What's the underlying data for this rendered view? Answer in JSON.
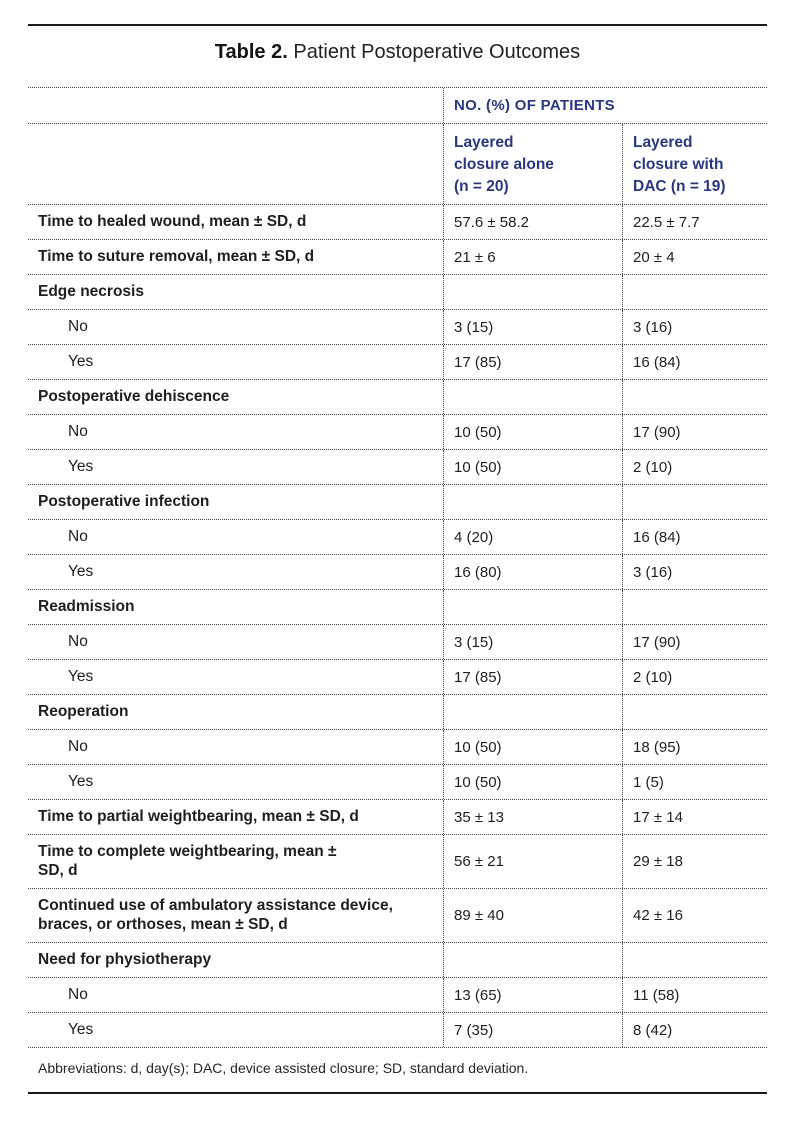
{
  "title": {
    "bold": "Table 2.",
    "rest": "Patient Postoperative Outcomes"
  },
  "table": {
    "group_header": "NO. (%) OF PATIENTS",
    "col_headers": [
      "Layered\ncclosure alone\n(n = 20)",
      "Layered\ncclosure with\nDAC (n = 19)"
    ],
    "rows": [
      {
        "label": "Time to healed wound, mean ± SD, d",
        "bold": true,
        "indent": false,
        "values": [
          "57.6 ± 58.2",
          "22.5 ± 7.7"
        ]
      },
      {
        "label": "Time to suture removal, mean ± SD, d",
        "bold": true,
        "indent": false,
        "values": [
          "21 ± 6",
          "20 ± 4"
        ]
      },
      {
        "label": "Edge necrosis",
        "bold": true,
        "indent": false,
        "values": [
          "",
          ""
        ]
      },
      {
        "label": "No",
        "bold": false,
        "indent": true,
        "values": [
          "3 (15)",
          "3 (16)"
        ]
      },
      {
        "label": "Yes",
        "bold": false,
        "indent": true,
        "values": [
          "17 (85)",
          "16 (84)"
        ]
      },
      {
        "label": "Postoperative dehiscence",
        "bold": true,
        "indent": false,
        "values": [
          "",
          ""
        ]
      },
      {
        "label": "No",
        "bold": false,
        "indent": true,
        "values": [
          "10 (50)",
          "17 (90)"
        ]
      },
      {
        "label": "Yes",
        "bold": false,
        "indent": true,
        "values": [
          "10 (50)",
          "2 (10)"
        ]
      },
      {
        "label": "Postoperative infection",
        "bold": true,
        "indent": false,
        "values": [
          "",
          ""
        ]
      },
      {
        "label": "No",
        "bold": false,
        "indent": true,
        "values": [
          "4 (20)",
          "16 (84)"
        ]
      },
      {
        "label": "Yes",
        "bold": false,
        "indent": true,
        "values": [
          "16 (80)",
          "3 (16)"
        ]
      },
      {
        "label": "Readmission",
        "bold": true,
        "indent": false,
        "values": [
          "",
          ""
        ]
      },
      {
        "label": "No",
        "bold": false,
        "indent": true,
        "values": [
          "3 (15)",
          "17 (90)"
        ]
      },
      {
        "label": "Yes",
        "bold": false,
        "indent": true,
        "values": [
          "17 (85)",
          "2 (10)"
        ]
      },
      {
        "label": "Reoperation",
        "bold": true,
        "indent": false,
        "values": [
          "",
          ""
        ]
      },
      {
        "label": "No",
        "bold": false,
        "indent": true,
        "values": [
          "10 (50)",
          "18 (95)"
        ]
      },
      {
        "label": "Yes",
        "bold": false,
        "indent": true,
        "values": [
          "10 (50)",
          "1 (5)"
        ]
      },
      {
        "label": "Time to partial weightbearing, mean ± SD, d",
        "bold": true,
        "indent": false,
        "values": [
          "35 ± 13",
          "17 ± 14"
        ]
      },
      {
        "label": "Time to complete weightbearing, mean ±\nSD, d",
        "bold": true,
        "indent": false,
        "values": [
          "56 ± 21",
          "29 ± 18"
        ]
      },
      {
        "label": "Continued use of ambulatory assistance device,\nbraces, or orthoses, mean ± SD, d",
        "bold": true,
        "indent": false,
        "values": [
          "89 ± 40",
          "42 ± 16"
        ]
      },
      {
        "label": "Need for physiotherapy",
        "bold": true,
        "indent": false,
        "values": [
          "",
          ""
        ]
      },
      {
        "label": "No",
        "bold": false,
        "indent": true,
        "values": [
          "13 (65)",
          "11 (58)"
        ]
      },
      {
        "label": "Yes",
        "bold": false,
        "indent": true,
        "values": [
          "7 (35)",
          "8 (42)"
        ]
      }
    ],
    "footnote": "Abbreviations: d, day(s); DAC, device assisted closure; SD, standard deviation."
  },
  "colors": {
    "accent_navy": "#293780",
    "body_text": "#1f1f1f",
    "rule": "#1a1a1a",
    "dotted_rule": "#4a4a4a"
  }
}
